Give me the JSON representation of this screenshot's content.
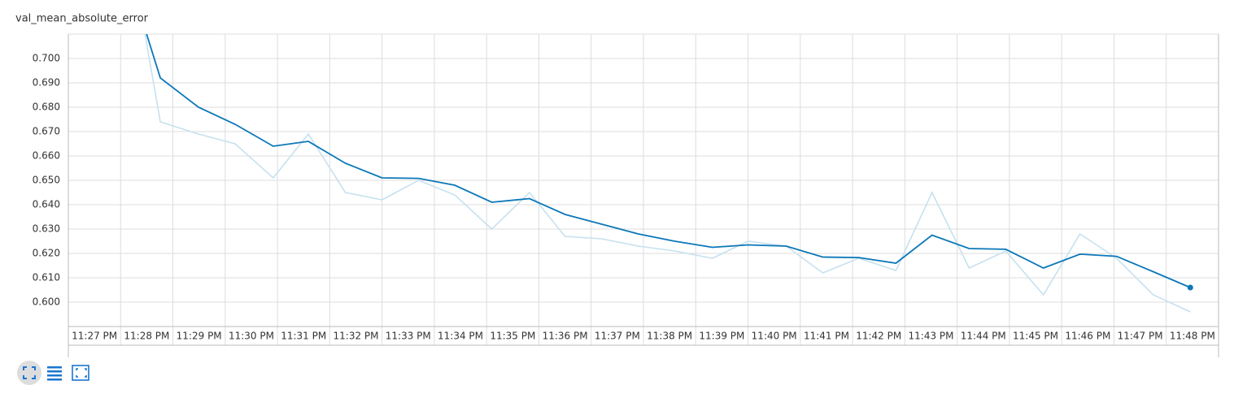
{
  "chart_data": {
    "type": "line",
    "title": "val_mean_absolute_error",
    "xlim": [
      27,
      49
    ],
    "xticks": [
      {
        "value": 27,
        "label": "11:27 PM"
      },
      {
        "value": 28,
        "label": "11:28 PM"
      },
      {
        "value": 29,
        "label": "11:29 PM"
      },
      {
        "value": 30,
        "label": "11:30 PM"
      },
      {
        "value": 31,
        "label": "11:31 PM"
      },
      {
        "value": 32,
        "label": "11:32 PM"
      },
      {
        "value": 33,
        "label": "11:33 PM"
      },
      {
        "value": 34,
        "label": "11:34 PM"
      },
      {
        "value": 35,
        "label": "11:35 PM"
      },
      {
        "value": 36,
        "label": "11:36 PM"
      },
      {
        "value": 37,
        "label": "11:37 PM"
      },
      {
        "value": 38,
        "label": "11:38 PM"
      },
      {
        "value": 39,
        "label": "11:39 PM"
      },
      {
        "value": 40,
        "label": "11:40 PM"
      },
      {
        "value": 41,
        "label": "11:41 PM"
      },
      {
        "value": 42,
        "label": "11:42 PM"
      },
      {
        "value": 43,
        "label": "11:43 PM"
      },
      {
        "value": 44,
        "label": "11:44 PM"
      },
      {
        "value": 45,
        "label": "11:45 PM"
      },
      {
        "value": 46,
        "label": "11:46 PM"
      },
      {
        "value": 47,
        "label": "11:47 PM"
      },
      {
        "value": 48,
        "label": "11:48 PM"
      }
    ],
    "ylim": [
      0.59,
      0.71
    ],
    "yticks": [
      {
        "value": 0.6,
        "label": "0.600"
      },
      {
        "value": 0.61,
        "label": "0.610"
      },
      {
        "value": 0.62,
        "label": "0.620"
      },
      {
        "value": 0.63,
        "label": "0.630"
      },
      {
        "value": 0.64,
        "label": "0.640"
      },
      {
        "value": 0.65,
        "label": "0.650"
      },
      {
        "value": 0.66,
        "label": "0.660"
      },
      {
        "value": 0.67,
        "label": "0.670"
      },
      {
        "value": 0.68,
        "label": "0.680"
      },
      {
        "value": 0.69,
        "label": "0.690"
      },
      {
        "value": 0.7,
        "label": "0.700"
      }
    ],
    "grid": true,
    "x": [
      28.06,
      28.76,
      29.49,
      30.19,
      30.92,
      31.59,
      32.3,
      33.0,
      33.7,
      34.39,
      35.1,
      35.82,
      36.5,
      37.2,
      37.9,
      38.6,
      39.32,
      40.0,
      40.73,
      41.43,
      42.12,
      42.83,
      43.52,
      44.23,
      44.93,
      45.65,
      46.35,
      47.05,
      47.75,
      48.46
    ],
    "series": [
      {
        "color": "#c6e1ef",
        "values": [
          0.76,
          0.674,
          0.669,
          0.665,
          0.651,
          0.669,
          0.645,
          0.642,
          0.65,
          0.644,
          0.63,
          0.645,
          0.627,
          0.626,
          0.623,
          0.621,
          0.618,
          0.625,
          0.623,
          0.612,
          0.618,
          0.613,
          0.645,
          0.614,
          0.621,
          0.603,
          0.628,
          0.618,
          0.603,
          0.596
        ]
      },
      {
        "color": "#0b77b8",
        "values": [
          0.74,
          0.692,
          0.68,
          0.673,
          0.664,
          0.666,
          0.657,
          0.651,
          0.6508,
          0.648,
          0.641,
          0.6425,
          0.636,
          0.632,
          0.628,
          0.625,
          0.6225,
          0.6235,
          0.623,
          0.6185,
          0.6183,
          0.616,
          0.6275,
          0.622,
          0.6217,
          0.614,
          0.6197,
          0.6188,
          0.6125,
          0.606
        ]
      }
    ]
  }
}
